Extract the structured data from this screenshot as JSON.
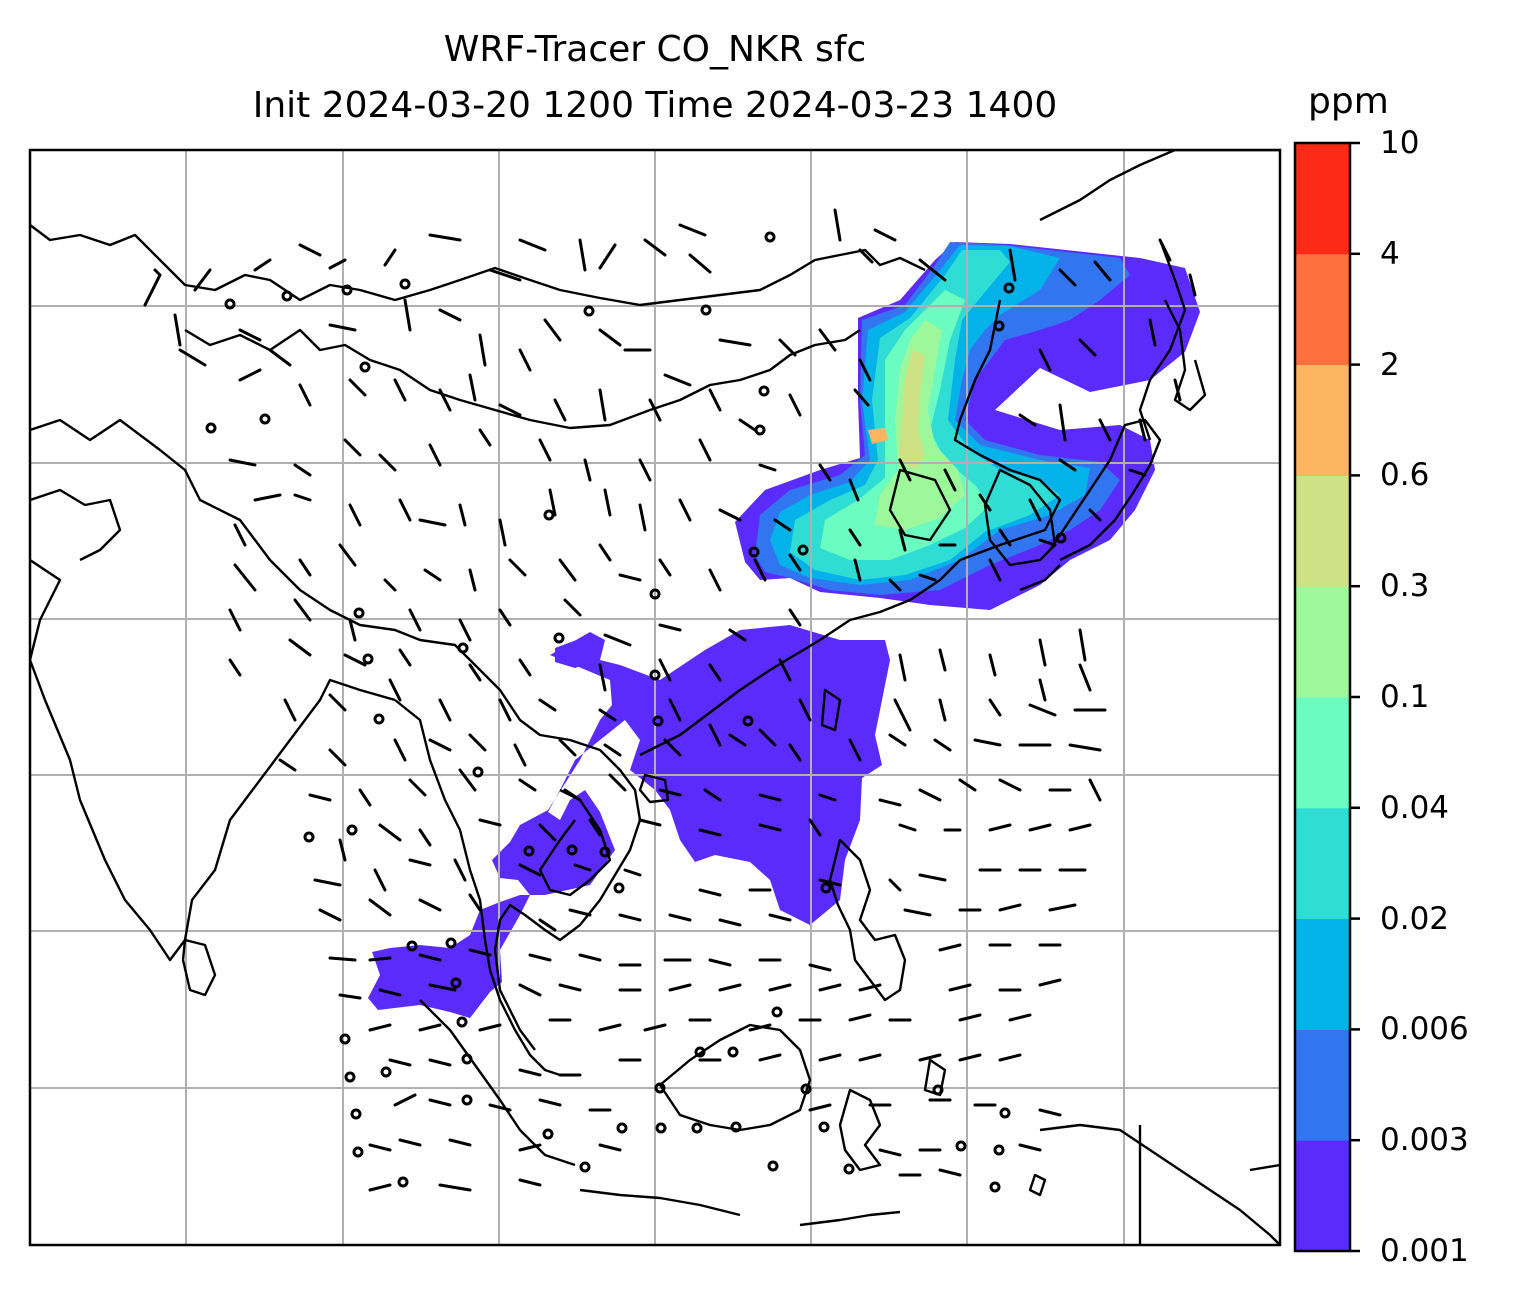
{
  "title": {
    "line1": "WRF-Tracer CO_NKR sfc",
    "line2": "Init 2024-03-20 1200 Time 2024-03-23 1400"
  },
  "colorbar": {
    "unit": "ppm",
    "levels": [
      "0.001",
      "0.003",
      "0.006",
      "0.02",
      "0.04",
      "0.1",
      "0.3",
      "0.6",
      "2",
      "4",
      "10"
    ],
    "colors": [
      "#5b2bfb",
      "#3275f0",
      "#04b2ea",
      "#30ddd4",
      "#6afcc0",
      "#9cf89a",
      "#cfe185",
      "#fdb562",
      "#fe703d",
      "#fd2a17"
    ]
  },
  "map": {
    "field": "CO_NKR surface tracer concentration",
    "overlay": "wind barbs",
    "gridlines": true
  }
}
